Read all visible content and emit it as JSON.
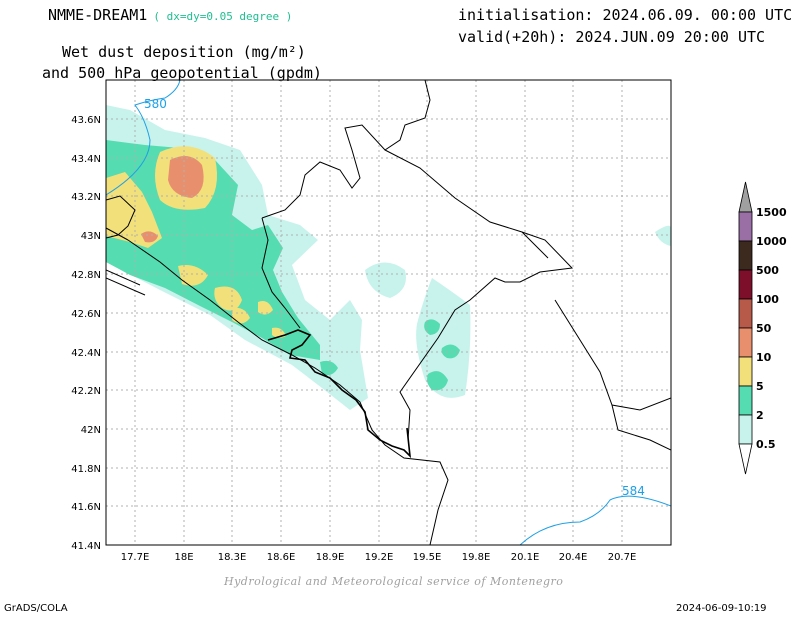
{
  "header": {
    "model": "NMME-DREAM1",
    "resolution": "( dx=dy=0.05 degree )",
    "initialisation": "initialisation: 2024.06.09. 00:00 UTC",
    "valid": "valid(+20h): 2024.JUN.09 20:00 UTC",
    "variable_line1": "Wet dust deposition (mg/m²)",
    "variable_line2": "and 500 hPa geopotential (gpdm)"
  },
  "map": {
    "lon_ticks": [
      "17.7E",
      "18E",
      "18.3E",
      "18.6E",
      "18.9E",
      "19.2E",
      "19.5E",
      "19.8E",
      "20.1E",
      "20.4E",
      "20.7E"
    ],
    "lat_ticks": [
      "43.6N",
      "43.4N",
      "43.2N",
      "43N",
      "42.8N",
      "42.6N",
      "42.4N",
      "42.2N",
      "42N",
      "41.8N",
      "41.6N",
      "41.4N"
    ],
    "contour_labels": [
      "580",
      "584"
    ]
  },
  "legend": {
    "levels": [
      "1500",
      "1000",
      "500",
      "100",
      "50",
      "10",
      "5",
      "2",
      "0.5"
    ],
    "colors": [
      "#a0a0a0",
      "#9a6fa6",
      "#3c2a1e",
      "#7d0f2b",
      "#b85a4a",
      "#e8906e",
      "#f2e07a",
      "#55dcb0",
      "#c8f3ec",
      "#ffffff"
    ]
  },
  "footer": {
    "credit": "Hydrological and Meteorological service of Montenegro",
    "software": "GrADS/COLA",
    "timestamp": "2024-06-09-10:19"
  }
}
